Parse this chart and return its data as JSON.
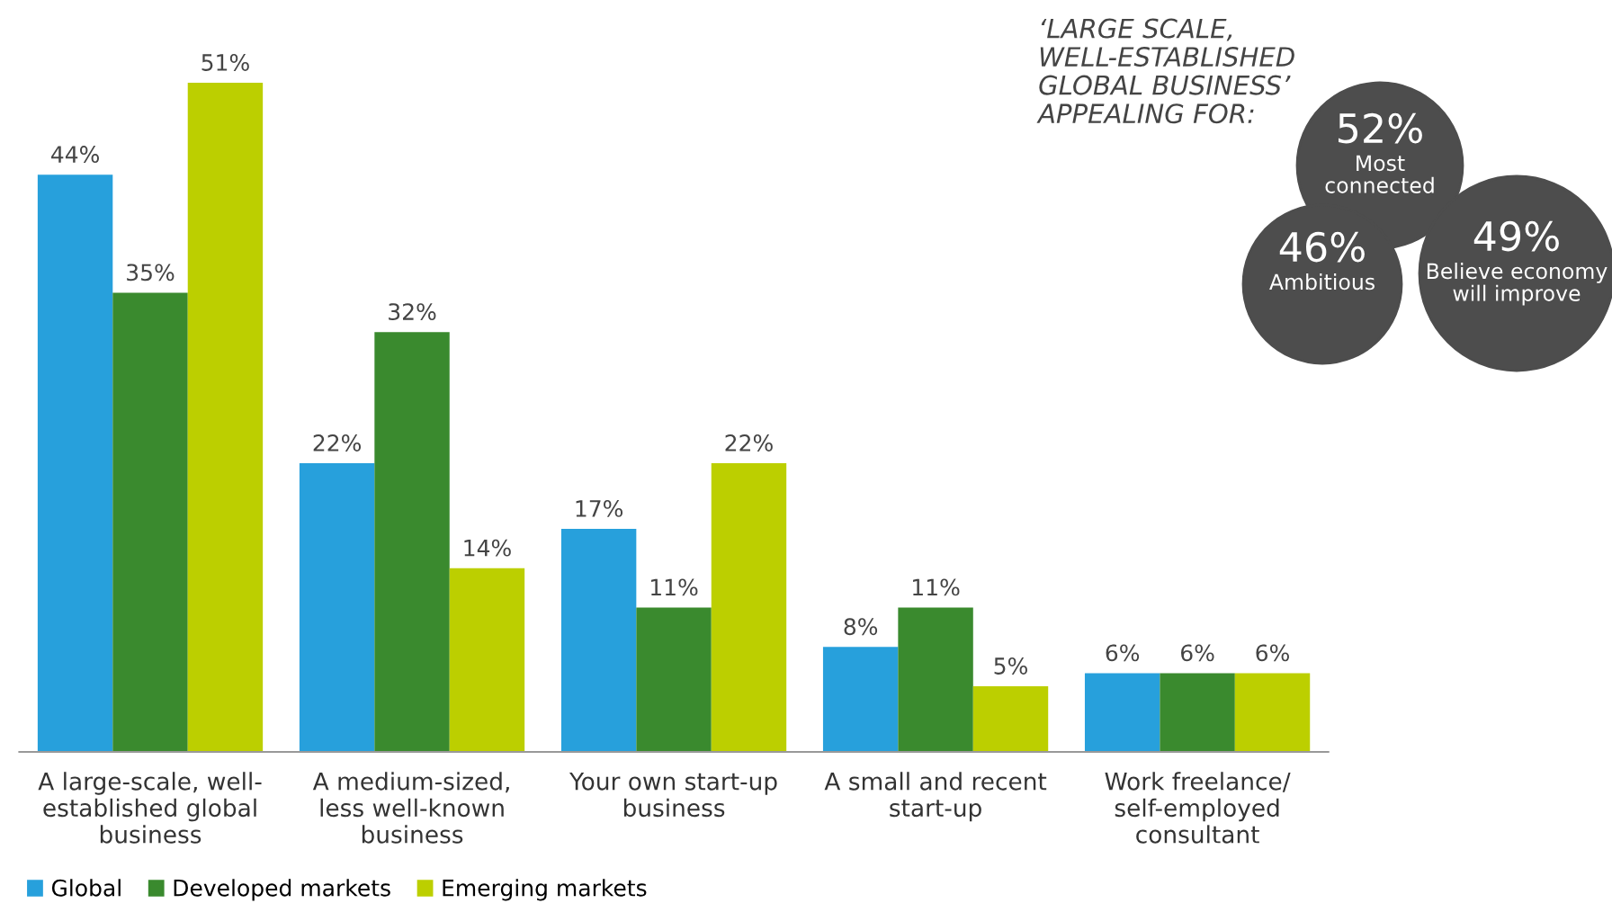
{
  "chart_data": {
    "type": "bar",
    "categories": [
      "A large-scale, well-\nestablished global\nbusiness",
      "A medium-sized,\nless well-known\nbusiness",
      "Your own start-up\nbusiness",
      "A small and recent\nstart-up",
      "Work freelance/\nself-employed\nconsultant"
    ],
    "series": [
      {
        "name": "Global",
        "color": "#27a0dc",
        "values": [
          44,
          22,
          17,
          8,
          6
        ],
        "value_labels": [
          "44%",
          "22%",
          "17%",
          "8%",
          "6%"
        ]
      },
      {
        "name": "Developed markets",
        "color": "#3a8a2e",
        "values": [
          35,
          32,
          11,
          11,
          6
        ],
        "value_labels": [
          "35%",
          "32%",
          "11%",
          "11%",
          "6%"
        ]
      },
      {
        "name": "Emerging markets",
        "color": "#bccf00",
        "values": [
          51,
          14,
          22,
          5,
          6
        ],
        "value_labels": [
          "51%",
          "14%",
          "22%",
          "5%",
          "6%"
        ]
      }
    ],
    "legend": "bottom left",
    "grid": false,
    "annotations": [
      "‘LARGE SCALE,\nWELL-ESTABLISHED\nGLOBAL BUSINESS’\nAPPEALING FOR:",
      "52%\nMost\nconnected",
      "46%\nAmbitious",
      "49%\nBelieve economy\nwill improve"
    ]
  }
}
